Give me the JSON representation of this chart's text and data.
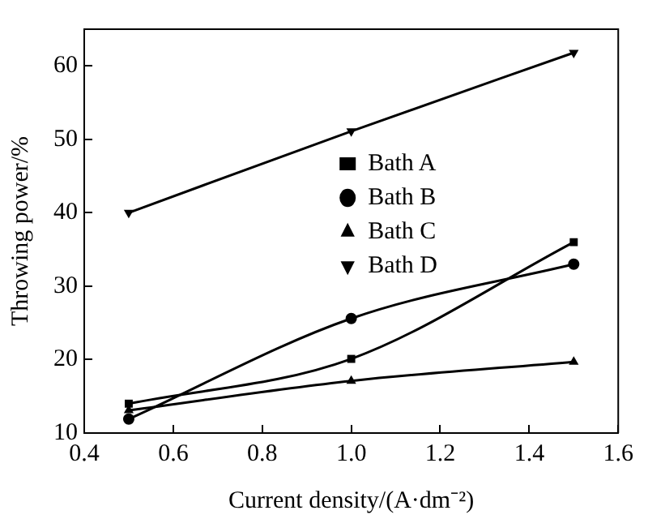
{
  "chart_data": {
    "type": "line",
    "xlabel": "Current density/(A·dm⁻²)",
    "ylabel": "Throwing power/%",
    "x": [
      0.5,
      1.0,
      1.5
    ],
    "xlim": [
      0.4,
      1.6
    ],
    "xticks": [
      {
        "value": 0.4,
        "label": "0.4"
      },
      {
        "value": 0.6,
        "label": "0.6"
      },
      {
        "value": 0.8,
        "label": "0.8"
      },
      {
        "value": 1.0,
        "label": "1.0"
      },
      {
        "value": 1.2,
        "label": "1.2"
      },
      {
        "value": 1.4,
        "label": "1.4"
      },
      {
        "value": 1.6,
        "label": "1.6"
      }
    ],
    "ylim": [
      10,
      65
    ],
    "yticks": [
      10,
      20,
      30,
      40,
      50,
      60
    ],
    "grid": false,
    "legend": "center",
    "line_style": "solid",
    "series": [
      {
        "name": "Bath A",
        "color": "#000000",
        "marker": "square",
        "values": [
          14,
          20.1,
          36
        ]
      },
      {
        "name": "Bath B",
        "color": "#000000",
        "marker": "circle",
        "values": [
          11.9,
          25.6,
          33
        ]
      },
      {
        "name": "Bath C",
        "color": "#000000",
        "marker": "triangle",
        "values": [
          13.1,
          17.1,
          19.7
        ]
      },
      {
        "name": "Bath D",
        "color": "#000000",
        "marker": "triangle-down",
        "values": [
          40,
          51.1,
          61.8
        ]
      }
    ]
  }
}
